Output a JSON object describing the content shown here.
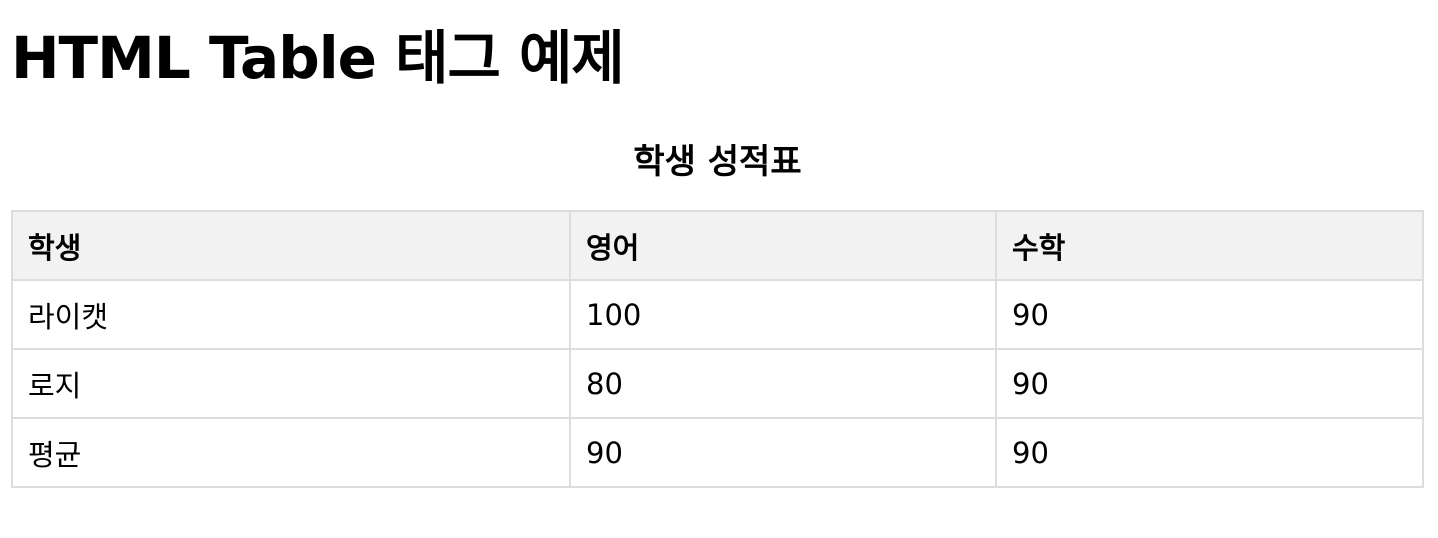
{
  "page": {
    "title": "HTML Table 태그 예제"
  },
  "table": {
    "caption": "학생 성적표",
    "headers": [
      "학생",
      "영어",
      "수학"
    ],
    "rows": [
      [
        "라이캣",
        "100",
        "90"
      ],
      [
        "로지",
        "80",
        "90"
      ],
      [
        "평균",
        "90",
        "90"
      ]
    ]
  },
  "colors": {
    "header_background": "#f2f2f2",
    "border": "#dddddd"
  }
}
